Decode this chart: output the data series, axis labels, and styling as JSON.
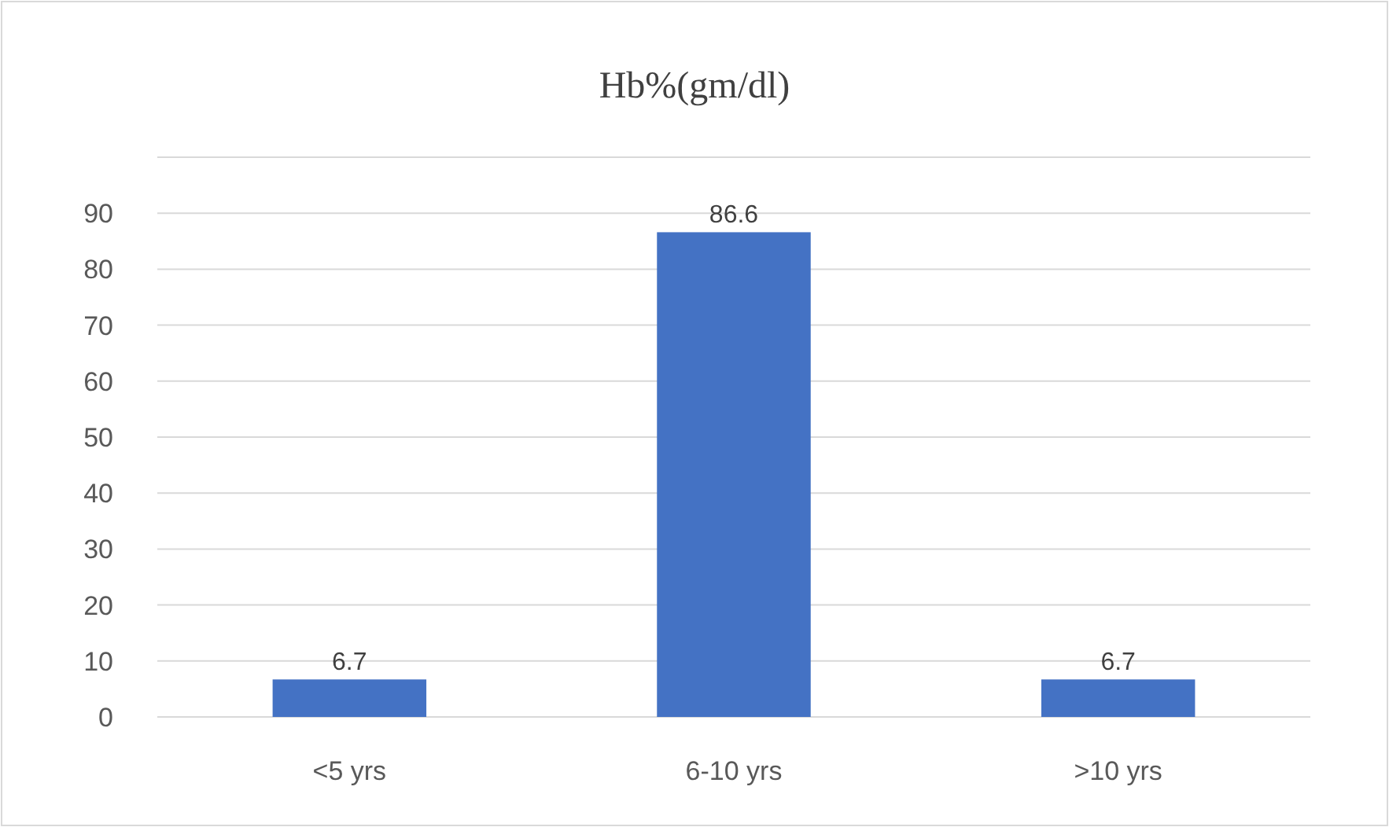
{
  "chart_data": {
    "type": "bar",
    "title": "Hb%(gm/dl)",
    "categories": [
      "<5 yrs",
      "6-10 yrs",
      ">10 yrs"
    ],
    "values": [
      6.7,
      86.6,
      6.7
    ],
    "color": "#4472c4",
    "data_labels": true,
    "ylim": [
      0,
      100
    ],
    "yticks": [
      0,
      10,
      20,
      30,
      40,
      50,
      60,
      70,
      80,
      90,
      {
        "value": 100,
        "label": null
      }
    ],
    "grid": "y"
  }
}
